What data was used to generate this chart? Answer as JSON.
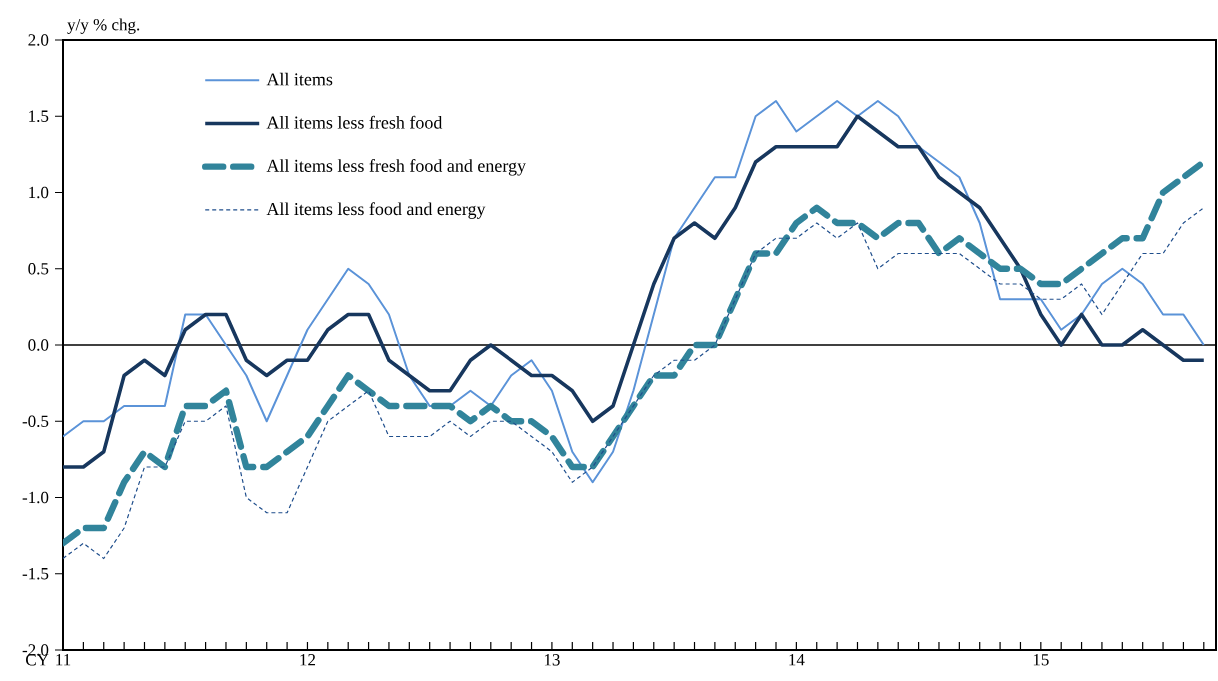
{
  "chart_data": {
    "type": "line",
    "ylabel": "y/y % chg.",
    "xlabel": "CY",
    "categories": [
      "11",
      null,
      null,
      null,
      null,
      null,
      null,
      null,
      null,
      null,
      null,
      null,
      "12",
      null,
      null,
      null,
      null,
      null,
      null,
      null,
      null,
      null,
      null,
      null,
      "13",
      null,
      null,
      null,
      null,
      null,
      null,
      null,
      null,
      null,
      null,
      null,
      "14",
      null,
      null,
      null,
      null,
      null,
      null,
      null,
      null,
      null,
      null,
      null,
      "15",
      null,
      null,
      null,
      null,
      null,
      null,
      null,
      null
    ],
    "series": [
      {
        "name": "All items",
        "color": "#5b93d8",
        "line_style": "solid",
        "values": [
          -0.6,
          -0.5,
          -0.5,
          -0.4,
          -0.4,
          -0.4,
          0.2,
          0.2,
          0.0,
          -0.2,
          -0.5,
          -0.2,
          0.1,
          0.3,
          0.5,
          0.4,
          0.2,
          -0.2,
          -0.4,
          -0.4,
          -0.3,
          -0.4,
          -0.2,
          -0.1,
          -0.3,
          -0.7,
          -0.9,
          -0.7,
          -0.3,
          0.2,
          0.7,
          0.9,
          1.1,
          1.1,
          1.5,
          1.6,
          1.4,
          1.5,
          1.6,
          1.5,
          1.6,
          1.5,
          1.3,
          1.2,
          1.1,
          0.8,
          0.3,
          0.3,
          0.3,
          0.1,
          0.2,
          0.4,
          0.5,
          0.4,
          0.2,
          0.2,
          0.0
        ]
      },
      {
        "name": "All items less fresh food",
        "color": "#17375e",
        "line_style": "solid",
        "values": [
          -0.8,
          -0.8,
          -0.7,
          -0.2,
          -0.1,
          -0.2,
          0.1,
          0.2,
          0.2,
          -0.1,
          -0.2,
          -0.1,
          -0.1,
          0.1,
          0.2,
          0.2,
          -0.1,
          -0.2,
          -0.3,
          -0.3,
          -0.1,
          0.0,
          -0.1,
          -0.2,
          -0.2,
          -0.3,
          -0.5,
          -0.4,
          0.0,
          0.4,
          0.7,
          0.8,
          0.7,
          0.9,
          1.2,
          1.3,
          1.3,
          1.3,
          1.3,
          1.5,
          1.4,
          1.3,
          1.3,
          1.1,
          1.0,
          0.9,
          0.7,
          0.5,
          0.2,
          0.0,
          0.2,
          0.0,
          0.0,
          0.1,
          0.0,
          -0.1,
          -0.1
        ]
      },
      {
        "name": "All items less fresh food and energy",
        "color": "#31849b",
        "line_style": "dashed",
        "values": [
          -1.3,
          -1.2,
          -1.2,
          -0.9,
          -0.7,
          -0.8,
          -0.4,
          -0.4,
          -0.3,
          -0.8,
          -0.8,
          -0.7,
          -0.6,
          -0.4,
          -0.2,
          -0.3,
          -0.4,
          -0.4,
          -0.4,
          -0.4,
          -0.5,
          -0.4,
          -0.5,
          -0.5,
          -0.6,
          -0.8,
          -0.8,
          -0.6,
          -0.4,
          -0.2,
          -0.2,
          0.0,
          0.0,
          0.3,
          0.6,
          0.6,
          0.8,
          0.9,
          0.8,
          0.8,
          0.7,
          0.8,
          0.8,
          0.6,
          0.7,
          0.6,
          0.5,
          0.5,
          0.4,
          0.4,
          0.5,
          0.6,
          0.7,
          0.7,
          1.0,
          1.1,
          1.2
        ]
      },
      {
        "name": "All items less food and energy",
        "color": "#1f4e8c",
        "line_style": "dotted",
        "values": [
          -1.4,
          -1.3,
          -1.4,
          -1.2,
          -0.8,
          -0.8,
          -0.5,
          -0.5,
          -0.4,
          -1.0,
          -1.1,
          -1.1,
          -0.8,
          -0.5,
          -0.4,
          -0.3,
          -0.6,
          -0.6,
          -0.6,
          -0.5,
          -0.6,
          -0.5,
          -0.5,
          -0.6,
          -0.7,
          -0.9,
          -0.8,
          -0.6,
          -0.4,
          -0.2,
          -0.1,
          -0.1,
          0.0,
          0.3,
          0.6,
          0.7,
          0.7,
          0.8,
          0.7,
          0.8,
          0.5,
          0.6,
          0.6,
          0.6,
          0.6,
          0.5,
          0.4,
          0.4,
          0.3,
          0.3,
          0.4,
          0.2,
          0.4,
          0.6,
          0.6,
          0.8,
          0.9
        ]
      }
    ],
    "ylim": [
      -2.0,
      2.0
    ],
    "yticks": [
      {
        "value": -2.0,
        "label": "-2.0"
      },
      {
        "value": -1.5,
        "label": "-1.5"
      },
      {
        "value": -1.0,
        "label": "-1.0"
      },
      {
        "value": -0.5,
        "label": "-0.5"
      },
      {
        "value": 0.0,
        "label": "0.0"
      },
      {
        "value": 0.5,
        "label": "0.5"
      },
      {
        "value": 1.0,
        "label": "1.0"
      },
      {
        "value": 1.5,
        "label": "1.5"
      },
      {
        "value": 2.0,
        "label": "2.0"
      }
    ],
    "ref_lines": [
      {
        "axis": "y",
        "value": 0,
        "color": "#000000"
      }
    ],
    "legend": "top left",
    "grid": false,
    "marker": "none"
  }
}
